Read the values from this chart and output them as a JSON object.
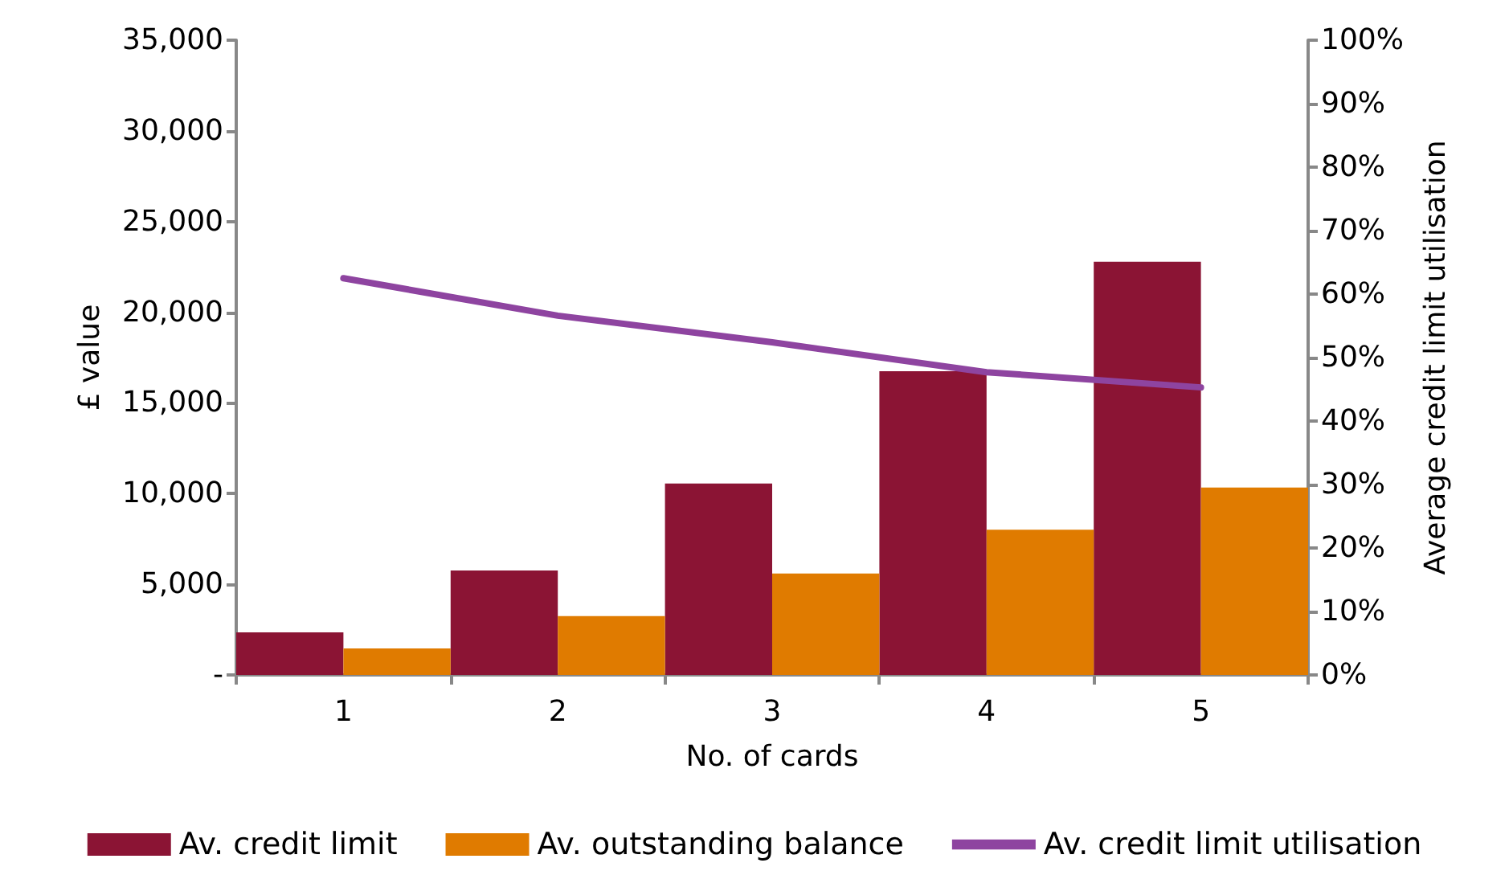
{
  "chart_data": {
    "type": "bar",
    "xlabel": "No. of cards",
    "ylabel": "£ value",
    "y2label": "Average credit limit utilisation",
    "categories": [
      "1",
      "2",
      "3",
      "4",
      "5"
    ],
    "series": [
      {
        "name": "Av. credit limit",
        "color": "#8b1434",
        "values": [
          2350,
          5760,
          10550,
          16750,
          22780
        ]
      },
      {
        "name": "Av. outstanding balance",
        "color": "#e07b00",
        "values": [
          1460,
          3240,
          5590,
          8010,
          10330
        ]
      },
      {
        "name": "Av. credit limit utilisation",
        "type": "line",
        "axis": "y2",
        "color": "#8e44a0",
        "marker": "none",
        "values": [
          62.5,
          56.6,
          52.4,
          47.7,
          45.3
        ]
      }
    ],
    "ylim": [
      0,
      35000
    ],
    "yticks": [
      {
        "value": 0,
        "label": "-"
      },
      {
        "value": 5000,
        "label": "5,000"
      },
      {
        "value": 10000,
        "label": "10,000"
      },
      {
        "value": 15000,
        "label": "15,000"
      },
      {
        "value": 20000,
        "label": "20,000"
      },
      {
        "value": 25000,
        "label": "25,000"
      },
      {
        "value": 30000,
        "label": "30,000"
      },
      {
        "value": 35000,
        "label": "35,000"
      }
    ],
    "y2lim": [
      0,
      100
    ],
    "y2ticks": [
      {
        "value": 0,
        "label": "0%"
      },
      {
        "value": 10,
        "label": "10%"
      },
      {
        "value": 20,
        "label": "20%"
      },
      {
        "value": 30,
        "label": "30%"
      },
      {
        "value": 40,
        "label": "40%"
      },
      {
        "value": 50,
        "label": "50%"
      },
      {
        "value": 60,
        "label": "60%"
      },
      {
        "value": 70,
        "label": "70%"
      },
      {
        "value": 80,
        "label": "80%"
      },
      {
        "value": 90,
        "label": "90%"
      },
      {
        "value": 100,
        "label": "100%"
      }
    ],
    "grid": false,
    "legend": "bottom"
  }
}
